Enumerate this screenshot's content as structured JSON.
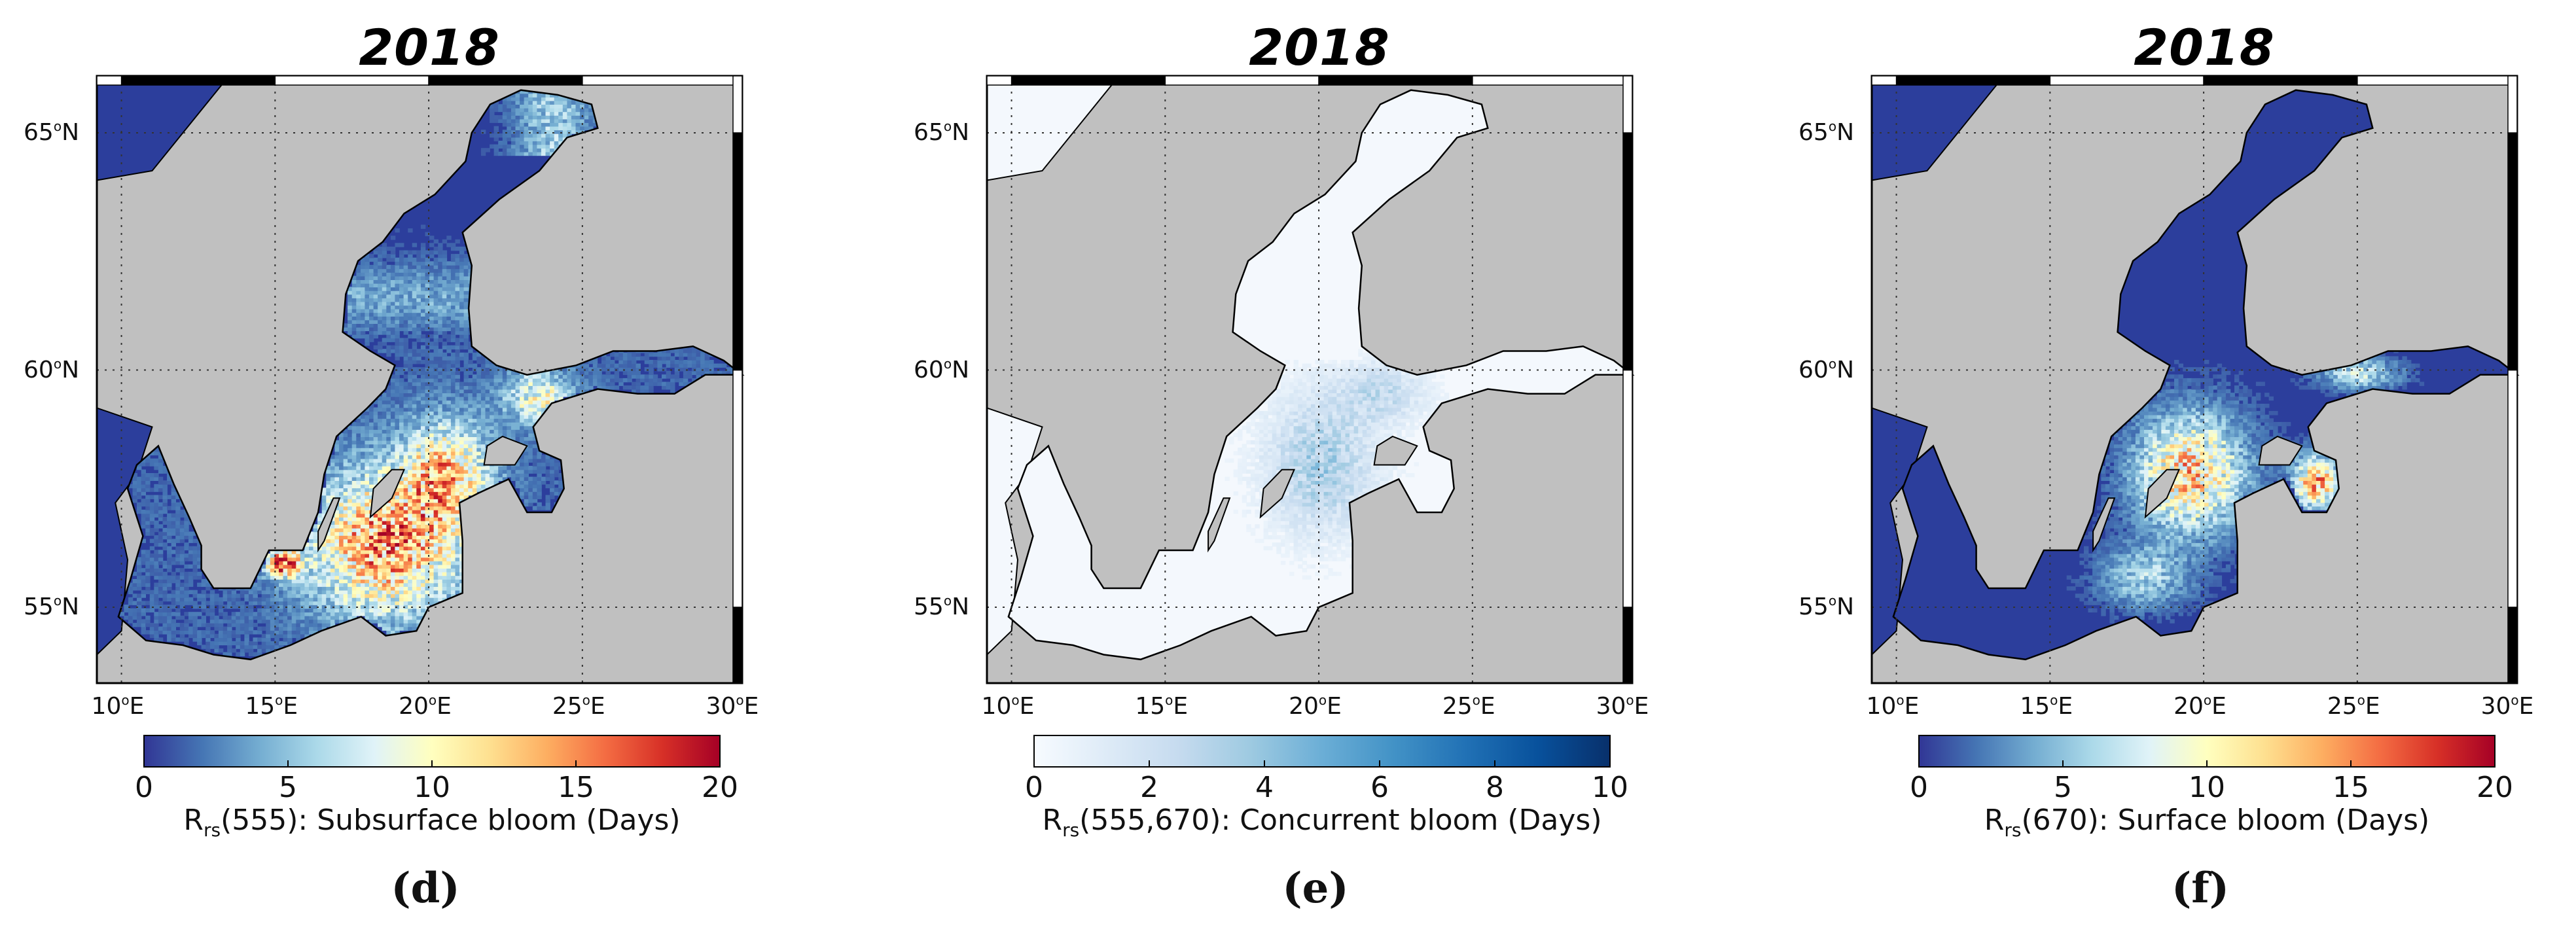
{
  "panels": [
    {
      "id": "d",
      "title": "2018",
      "letter": "(d)",
      "lat_labels": [
        "65",
        "60",
        "55"
      ],
      "lat_suffix": "N",
      "lon_labels": [
        "10",
        "15",
        "20",
        "25",
        "30"
      ],
      "lon_suffix": "E",
      "colorbar": {
        "ticks": [
          "0",
          "5",
          "10",
          "15",
          "20"
        ],
        "range": [
          0,
          20
        ],
        "colormap": "RdYlBu_r",
        "label_main": "R",
        "label_sub": "rs",
        "label_rest": "(555): Subsurface bloom (Days)"
      }
    },
    {
      "id": "e",
      "title": "2018",
      "letter": "(e)",
      "lat_labels": [
        "65",
        "60",
        "55"
      ],
      "lat_suffix": "N",
      "lon_labels": [
        "10",
        "15",
        "20",
        "25",
        "30"
      ],
      "lon_suffix": "E",
      "colorbar": {
        "ticks": [
          "0",
          "2",
          "4",
          "6",
          "8",
          "10"
        ],
        "range": [
          0,
          10
        ],
        "colormap": "Blues",
        "label_main": "R",
        "label_sub": "rs",
        "label_rest": "(555,670): Concurrent bloom (Days)"
      }
    },
    {
      "id": "f",
      "title": "2018",
      "letter": "(f)",
      "lat_labels": [
        "65",
        "60",
        "55"
      ],
      "lat_suffix": "N",
      "lon_labels": [
        "10",
        "15",
        "20",
        "25",
        "30"
      ],
      "lon_suffix": "E",
      "colorbar": {
        "ticks": [
          "0",
          "5",
          "10",
          "15",
          "20"
        ],
        "range": [
          0,
          20
        ],
        "colormap": "RdYlBu_r",
        "label_main": "R",
        "label_sub": "rs",
        "label_rest": "(670): Surface bloom (Days)"
      }
    }
  ],
  "colors": {
    "land": "#c0c0c0",
    "low_rdylbu": "#2c3e9c",
    "low_blues": "#f4f8fd"
  }
}
